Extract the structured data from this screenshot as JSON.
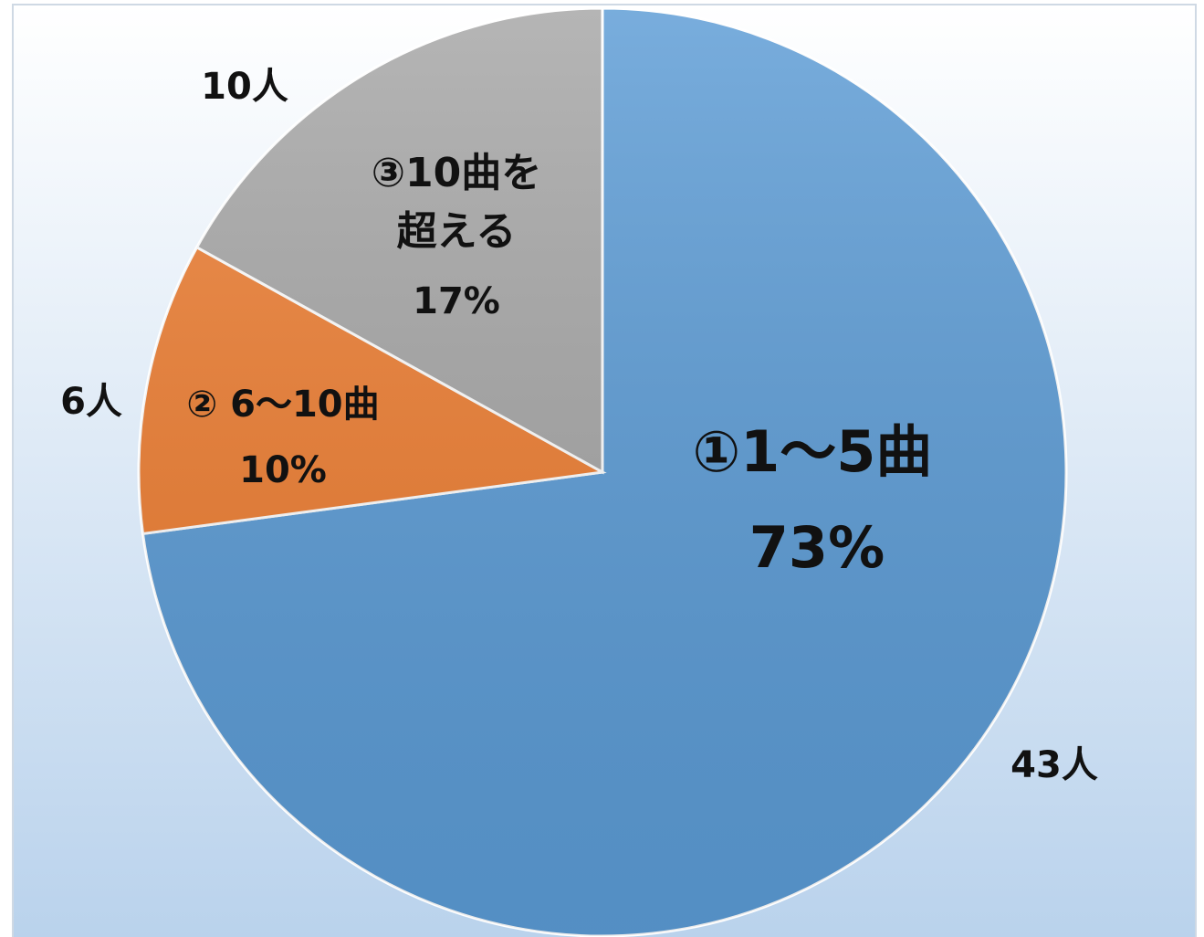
{
  "chart_data": {
    "type": "pie",
    "categories": [
      "①1～5曲",
      "② 6～10曲",
      "③10曲を\n超える"
    ],
    "values": [
      43,
      6,
      10
    ],
    "value_labels": [
      "43人",
      "6人",
      "10人"
    ],
    "percent_labels": [
      "73%",
      "10%",
      "17%"
    ],
    "colors": [
      "#5b9bd5",
      "#ed7d31",
      "#a5a5a5"
    ]
  }
}
